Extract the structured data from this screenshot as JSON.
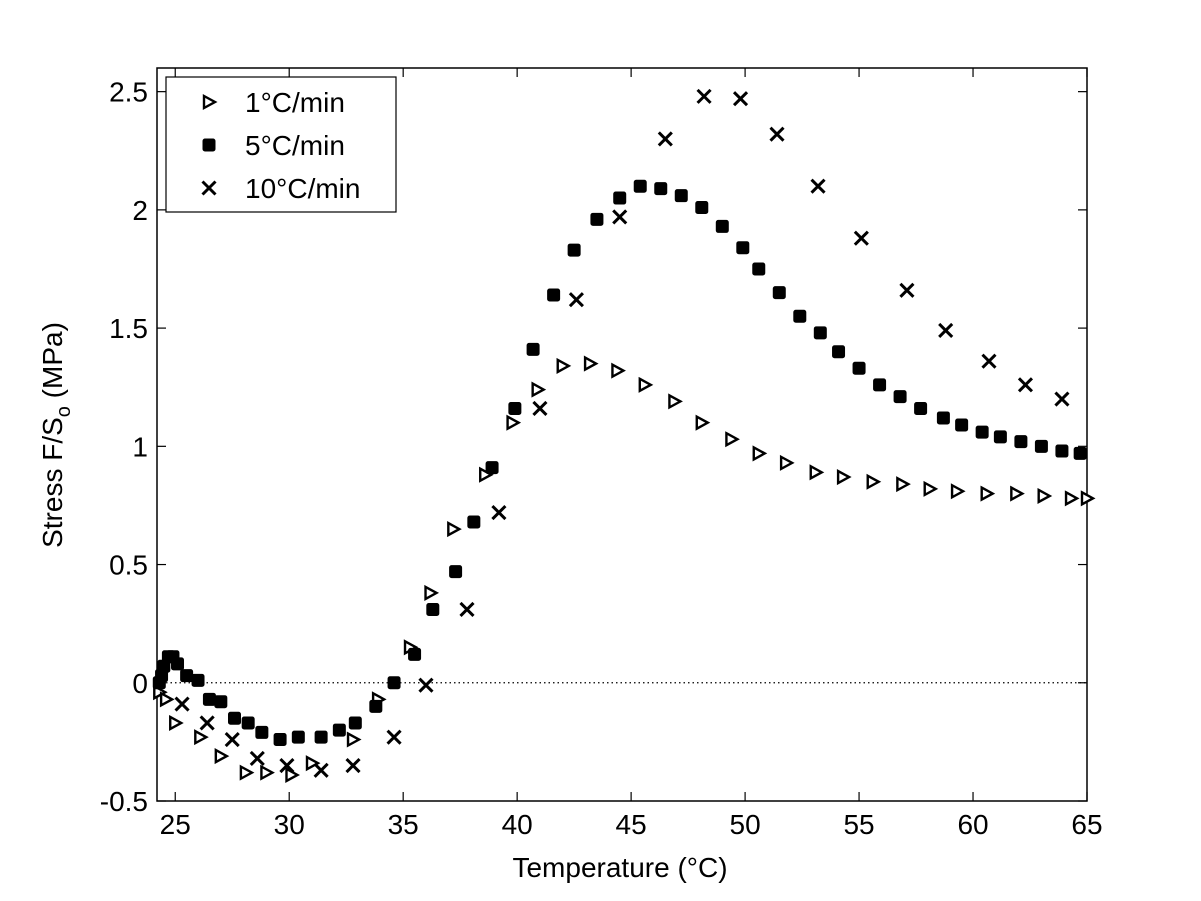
{
  "chart_data": {
    "type": "scatter",
    "title": "",
    "xlabel": "Temperature (°C)",
    "ylabel": "Stress F/S",
    "ylabel_subscript": "o",
    "ylabel_suffix": " (MPa)",
    "xlim": [
      24.2,
      65
    ],
    "ylim": [
      -0.5,
      2.6
    ],
    "xticks": [
      25,
      30,
      35,
      40,
      45,
      50,
      55,
      60,
      65
    ],
    "yticks": [
      -0.5,
      0,
      0.5,
      1,
      1.5,
      2,
      2.5
    ],
    "xtick_labels": [
      "25",
      "30",
      "35",
      "40",
      "45",
      "50",
      "55",
      "60",
      "65"
    ],
    "ytick_labels": [
      "-0.5",
      "0",
      "0.5",
      "1",
      "1.5",
      "2",
      "2.5"
    ],
    "zero_line": "dotted",
    "grid": false,
    "legend_position": "top-left",
    "series": [
      {
        "name": "1°C/min",
        "marker": "triangle-right",
        "x": [
          24.3,
          24.6,
          25.0,
          26.1,
          27.0,
          28.1,
          29.0,
          30.1,
          31.0,
          32.8,
          33.9,
          35.3,
          36.2,
          37.2,
          38.6,
          39.8,
          40.9,
          42.0,
          43.2,
          44.4,
          45.6,
          46.9,
          48.1,
          49.4,
          50.6,
          51.8,
          53.1,
          54.3,
          55.6,
          56.9,
          58.1,
          59.3,
          60.6,
          61.9,
          63.1,
          64.3,
          65.0
        ],
        "y": [
          -0.04,
          -0.07,
          -0.17,
          -0.23,
          -0.31,
          -0.38,
          -0.38,
          -0.39,
          -0.34,
          -0.24,
          -0.07,
          0.15,
          0.38,
          0.65,
          0.88,
          1.1,
          1.24,
          1.34,
          1.35,
          1.32,
          1.26,
          1.19,
          1.1,
          1.03,
          0.97,
          0.93,
          0.89,
          0.87,
          0.85,
          0.84,
          0.82,
          0.81,
          0.8,
          0.8,
          0.79,
          0.78,
          0.78
        ]
      },
      {
        "name": "5°C/min",
        "marker": "filled-square",
        "x": [
          24.3,
          24.4,
          24.5,
          24.7,
          24.9,
          25.1,
          25.5,
          26.0,
          26.5,
          27.0,
          27.6,
          28.2,
          28.8,
          29.6,
          30.4,
          31.4,
          32.2,
          32.9,
          33.8,
          34.6,
          35.5,
          36.3,
          37.3,
          38.1,
          38.9,
          39.9,
          40.7,
          41.6,
          42.5,
          43.5,
          44.5,
          45.4,
          46.3,
          47.2,
          48.1,
          49.0,
          49.9,
          50.6,
          51.5,
          52.4,
          53.3,
          54.1,
          55.0,
          55.9,
          56.8,
          57.7,
          58.7,
          59.5,
          60.4,
          61.2,
          62.1,
          63.0,
          63.9,
          64.7
        ],
        "y": [
          0.0,
          0.03,
          0.07,
          0.11,
          0.11,
          0.08,
          0.03,
          0.01,
          -0.07,
          -0.08,
          -0.15,
          -0.17,
          -0.21,
          -0.24,
          -0.23,
          -0.23,
          -0.2,
          -0.17,
          -0.1,
          0.0,
          0.12,
          0.31,
          0.47,
          0.68,
          0.91,
          1.16,
          1.41,
          1.64,
          1.83,
          1.96,
          2.05,
          2.1,
          2.09,
          2.06,
          2.01,
          1.93,
          1.84,
          1.75,
          1.65,
          1.55,
          1.48,
          1.4,
          1.33,
          1.26,
          1.21,
          1.16,
          1.12,
          1.09,
          1.06,
          1.04,
          1.02,
          1.0,
          0.98,
          0.97
        ]
      },
      {
        "name": "10°C/min",
        "marker": "x",
        "x": [
          25.3,
          26.4,
          27.5,
          28.6,
          29.9,
          31.4,
          32.8,
          34.6,
          36.0,
          37.8,
          39.2,
          41.0,
          42.6,
          44.5,
          46.5,
          48.2,
          49.8,
          51.4,
          53.2,
          55.1,
          57.1,
          58.8,
          60.7,
          62.3,
          63.9
        ],
        "y": [
          -0.09,
          -0.17,
          -0.24,
          -0.32,
          -0.35,
          -0.37,
          -0.35,
          -0.23,
          -0.01,
          0.31,
          0.72,
          1.16,
          1.62,
          1.97,
          2.3,
          2.48,
          2.47,
          2.32,
          2.1,
          1.88,
          1.66,
          1.49,
          1.36,
          1.26,
          1.2
        ]
      }
    ]
  }
}
